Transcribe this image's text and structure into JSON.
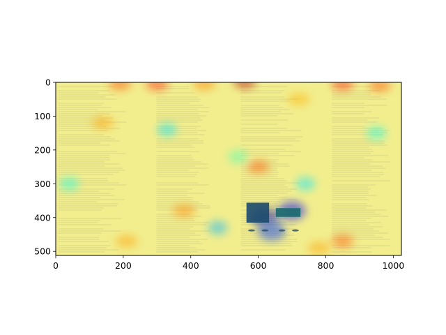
{
  "chart_data": {
    "type": "heatmap",
    "title": "",
    "xlabel": "",
    "ylabel": "",
    "xlim": [
      0,
      1024
    ],
    "ylim": [
      512,
      0
    ],
    "y_inverted": true,
    "x_ticks": [
      "0",
      "200",
      "400",
      "600",
      "800",
      "1000"
    ],
    "x_tick_values": [
      0,
      200,
      400,
      600,
      800,
      1000
    ],
    "y_ticks": [
      "0",
      "100",
      "200",
      "300",
      "400",
      "500"
    ],
    "y_tick_values": [
      0,
      100,
      200,
      300,
      400,
      500
    ],
    "grid": false,
    "colormap": "jet",
    "overlay_alpha": 0.45,
    "background_content": "four-page document scan",
    "page_column_ranges": [
      [
        0,
        220
      ],
      [
        290,
        470
      ],
      [
        540,
        740
      ],
      [
        810,
        1000
      ]
    ],
    "hotspots": [
      {
        "x": 560,
        "y": 0,
        "intensity": 0.95
      },
      {
        "x": 300,
        "y": 5,
        "intensity": 0.85
      },
      {
        "x": 190,
        "y": 5,
        "intensity": 0.8
      },
      {
        "x": 850,
        "y": 5,
        "intensity": 0.85
      },
      {
        "x": 960,
        "y": 10,
        "intensity": 0.8
      },
      {
        "x": 440,
        "y": 5,
        "intensity": 0.75
      },
      {
        "x": 600,
        "y": 250,
        "intensity": 0.8
      },
      {
        "x": 380,
        "y": 380,
        "intensity": 0.75
      },
      {
        "x": 850,
        "y": 470,
        "intensity": 0.8
      },
      {
        "x": 140,
        "y": 120,
        "intensity": 0.72
      },
      {
        "x": 780,
        "y": 490,
        "intensity": 0.72
      },
      {
        "x": 720,
        "y": 50,
        "intensity": 0.7
      },
      {
        "x": 210,
        "y": 470,
        "intensity": 0.72
      }
    ],
    "coldspots": [
      {
        "x": 620,
        "y": 400,
        "intensity": 0.05
      },
      {
        "x": 700,
        "y": 380,
        "intensity": 0.12
      },
      {
        "x": 640,
        "y": 440,
        "intensity": 0.18
      },
      {
        "x": 330,
        "y": 140,
        "intensity": 0.35
      },
      {
        "x": 480,
        "y": 430,
        "intensity": 0.3
      },
      {
        "x": 740,
        "y": 300,
        "intensity": 0.35
      },
      {
        "x": 950,
        "y": 150,
        "intensity": 0.4
      },
      {
        "x": 40,
        "y": 300,
        "intensity": 0.4
      },
      {
        "x": 540,
        "y": 220,
        "intensity": 0.45
      }
    ]
  },
  "colors": {
    "spine": "#000000",
    "background": "#ffffff"
  }
}
